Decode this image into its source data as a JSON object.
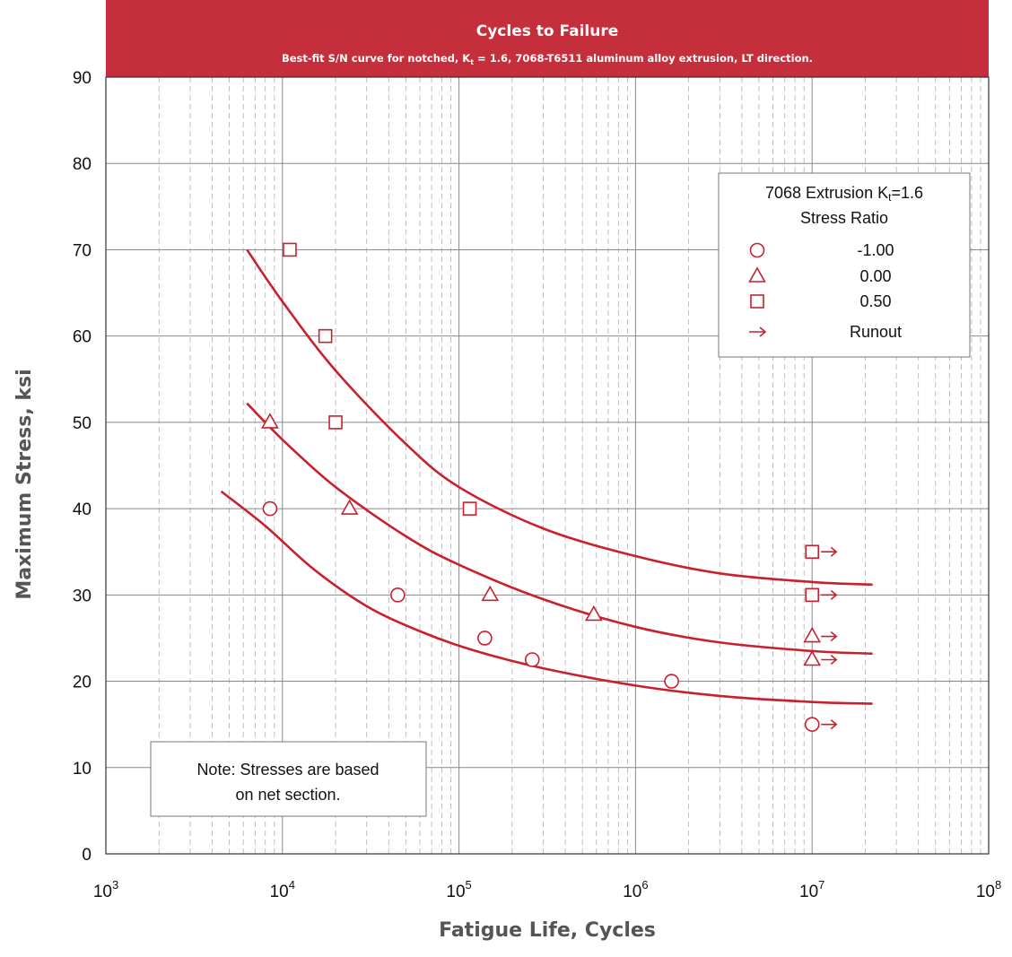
{
  "header": {
    "title": "Cycles to Failure",
    "subtitle_pre": "Best-fit S/N curve for notched, K",
    "subtitle_sub": "t",
    "subtitle_post": " = 1.6, 7068-T6511 aluminum alloy extrusion, LT direction."
  },
  "colors": {
    "accent": "#c42f3b",
    "series": "#c8202e",
    "grid": "#888888",
    "minor_grid": "#b0b0b0"
  },
  "chart_data": {
    "type": "scatter",
    "xlabel": "Fatigue Life, Cycles",
    "ylabel": "Maximum Stress, ksi",
    "xscale": "log",
    "xlim": [
      1000,
      100000000
    ],
    "ylim": [
      0,
      90
    ],
    "grid": true,
    "x_ticks": [
      {
        "value": 1000,
        "base": "10",
        "exp": "3"
      },
      {
        "value": 10000,
        "base": "10",
        "exp": "4"
      },
      {
        "value": 100000,
        "base": "10",
        "exp": "5"
      },
      {
        "value": 1000000,
        "base": "10",
        "exp": "6"
      },
      {
        "value": 10000000,
        "base": "10",
        "exp": "7"
      },
      {
        "value": 100000000,
        "base": "10",
        "exp": "8"
      }
    ],
    "y_ticks": [
      "0",
      "10",
      "20",
      "30",
      "40",
      "50",
      "60",
      "70",
      "80",
      "90"
    ],
    "series": [
      {
        "name": "-1.00",
        "marker": "circle",
        "points": [
          [
            8500,
            40
          ],
          [
            45000,
            30
          ],
          [
            140000,
            25
          ],
          [
            260000,
            22.5
          ],
          [
            1600000,
            20
          ]
        ],
        "runouts": [
          [
            10000000,
            15
          ]
        ],
        "curve": [
          [
            4500,
            42
          ],
          [
            8000,
            38
          ],
          [
            15000,
            33
          ],
          [
            30000,
            28.7
          ],
          [
            60000,
            25.8
          ],
          [
            120000,
            23.6
          ],
          [
            300000,
            21.5
          ],
          [
            1000000,
            19.5
          ],
          [
            3000000,
            18.3
          ],
          [
            10000000,
            17.6
          ],
          [
            22000000,
            17.4
          ]
        ]
      },
      {
        "name": "0.00",
        "marker": "triangle",
        "points": [
          [
            8500,
            50
          ],
          [
            24000,
            40
          ],
          [
            150000,
            30
          ],
          [
            580000,
            27.7
          ]
        ],
        "runouts": [
          [
            10000000,
            25.2
          ],
          [
            10000000,
            22.5
          ]
        ],
        "curve": [
          [
            6300,
            52.2
          ],
          [
            10000,
            48
          ],
          [
            20000,
            42.5
          ],
          [
            50000,
            36.8
          ],
          [
            100000,
            33.5
          ],
          [
            300000,
            29.5
          ],
          [
            1000000,
            26.3
          ],
          [
            3000000,
            24.5
          ],
          [
            10000000,
            23.5
          ],
          [
            22000000,
            23.2
          ]
        ]
      },
      {
        "name": "0.50",
        "marker": "square",
        "points": [
          [
            11000,
            70
          ],
          [
            17500,
            60
          ],
          [
            20000,
            50
          ],
          [
            115000,
            40
          ]
        ],
        "runouts": [
          [
            10000000,
            35
          ],
          [
            10000000,
            30
          ]
        ],
        "curve": [
          [
            6300,
            70
          ],
          [
            10000,
            64
          ],
          [
            20000,
            56
          ],
          [
            50000,
            47.5
          ],
          [
            100000,
            42.5
          ],
          [
            300000,
            37.7
          ],
          [
            1000000,
            34.5
          ],
          [
            3000000,
            32.5
          ],
          [
            10000000,
            31.5
          ],
          [
            22000000,
            31.2
          ]
        ]
      }
    ],
    "legend": {
      "position": "top-right",
      "title_pre": "7068 Extrusion K",
      "title_sub": "t",
      "title_post": "=1.6",
      "subtitle": "Stress Ratio",
      "runout_label": "Runout"
    },
    "note": {
      "line1": "Note:  Stresses are based",
      "line2": "on net section."
    }
  }
}
